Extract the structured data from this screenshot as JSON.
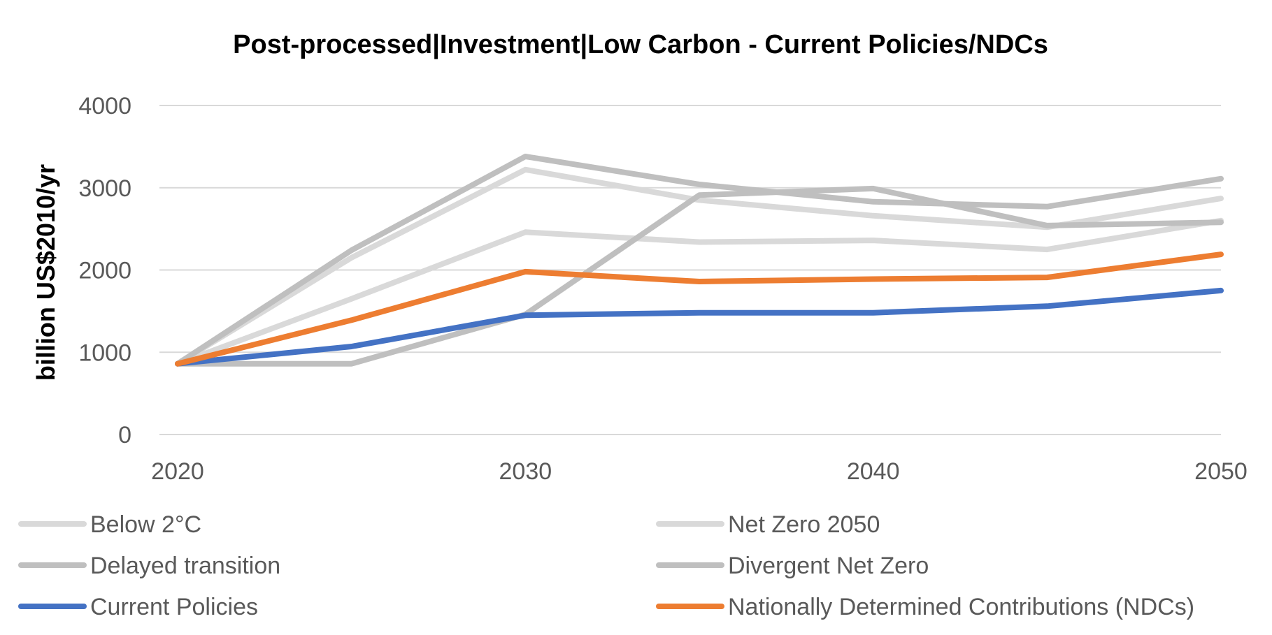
{
  "chart_data": {
    "type": "line",
    "title": "Post-processed|Investment|Low Carbon - Current Policies/NDCs",
    "ylabel": "billion US$2010/yr",
    "xlabel": "",
    "x": [
      2020,
      2025,
      2030,
      2035,
      2040,
      2045,
      2050
    ],
    "x_ticks": [
      2020,
      2030,
      2040,
      2050
    ],
    "xlim": [
      2020,
      2050
    ],
    "ylim": [
      0,
      4000
    ],
    "y_ticks": [
      0,
      1000,
      2000,
      3000,
      4000
    ],
    "grid": true,
    "legend_position": "bottom",
    "series": [
      {
        "name": "Below 2°C",
        "color": "#d9d9d9",
        "values": [
          860,
          1650,
          2460,
          2340,
          2360,
          2250,
          2600
        ]
      },
      {
        "name": "Net Zero 2050",
        "color": "#d9d9d9",
        "values": [
          860,
          2150,
          3220,
          2850,
          2660,
          2520,
          2870
        ]
      },
      {
        "name": "Delayed transition",
        "color": "#bfbfbf",
        "values": [
          860,
          860,
          1460,
          2910,
          2990,
          2540,
          2580
        ]
      },
      {
        "name": "Divergent Net Zero",
        "color": "#bfbfbf",
        "values": [
          860,
          2240,
          3380,
          3040,
          2830,
          2770,
          3110
        ]
      },
      {
        "name": "Current Policies",
        "color": "#4472c4",
        "values": [
          860,
          1070,
          1450,
          1480,
          1480,
          1560,
          1750
        ]
      },
      {
        "name": "Nationally Determined Contributions (NDCs)",
        "color": "#ed7d31",
        "values": [
          860,
          1390,
          1980,
          1860,
          1890,
          1910,
          2190
        ]
      }
    ]
  }
}
